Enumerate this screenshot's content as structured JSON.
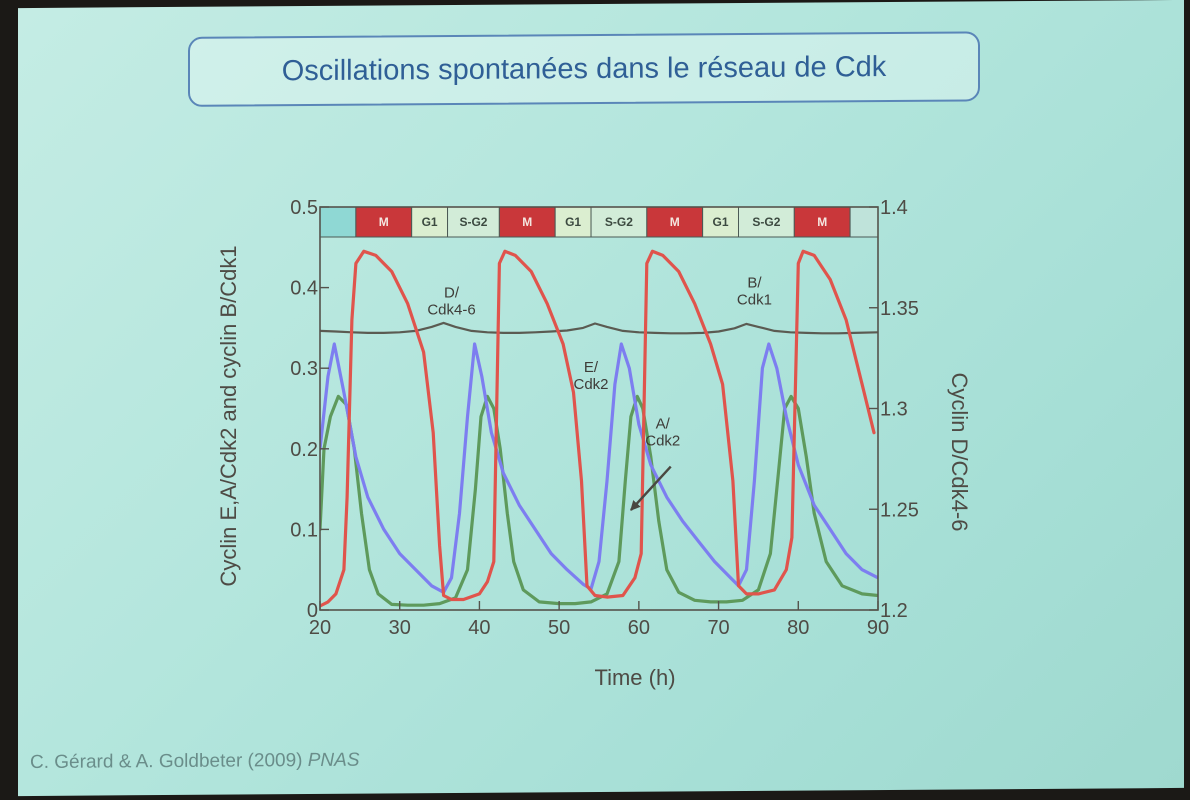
{
  "slide": {
    "title": "Oscillations spontanées dans le réseau de Cdk",
    "citation_authors": "C. Gérard & A. Goldbeter (2009)",
    "citation_journal": "PNAS"
  },
  "colors": {
    "cyclin_B": "#e0544c",
    "cyclin_E": "#7d7ef0",
    "cyclin_A": "#5e9a5c",
    "cyclin_D": "#5b5b52",
    "phase_M": "#c9373a",
    "phase_G1": "#dbeed0",
    "phase_SG2": "#d2ecd8",
    "phase_lead": "#8fd8d4"
  },
  "chart_data": {
    "type": "line",
    "xlabel": "Time (h)",
    "ylabel_left": "Cyclin E,A/Cdk2 and cyclin B/Cdk1",
    "ylabel_right": "Cyclin D/Cdk4-6",
    "xlim": [
      20,
      90
    ],
    "ylim_left": [
      0,
      0.5
    ],
    "ylim_right": [
      1.2,
      1.4
    ],
    "xticks": [
      20,
      30,
      40,
      50,
      60,
      70,
      80,
      90
    ],
    "yticks_left": [
      0,
      0.1,
      0.2,
      0.3,
      0.4,
      0.5
    ],
    "yticks_left_labels": [
      "0",
      "0.1",
      "0.2",
      "0.3",
      "0.4",
      "0.5"
    ],
    "yticks_right": [
      1.2,
      1.25,
      1.3,
      1.35,
      1.4
    ],
    "yticks_right_labels": [
      "1.2",
      "1.25",
      "1.3",
      "1.35",
      "1.4"
    ],
    "phases": [
      {
        "label": "",
        "start": 20,
        "end": 24.5
      },
      {
        "label": "M",
        "start": 24.5,
        "end": 31.5
      },
      {
        "label": "G1",
        "start": 31.5,
        "end": 36
      },
      {
        "label": "S-G2",
        "start": 36,
        "end": 42.5
      },
      {
        "label": "M",
        "start": 42.5,
        "end": 49.5
      },
      {
        "label": "G1",
        "start": 49.5,
        "end": 54
      },
      {
        "label": "S-G2",
        "start": 54,
        "end": 61
      },
      {
        "label": "M",
        "start": 61,
        "end": 68
      },
      {
        "label": "G1",
        "start": 68,
        "end": 72.5
      },
      {
        "label": "S-G2",
        "start": 72.5,
        "end": 79.5
      },
      {
        "label": "M",
        "start": 79.5,
        "end": 86.5
      }
    ],
    "annotations": [
      {
        "lines": [
          "D/",
          "Cdk4-6"
        ],
        "x": 36.5,
        "y": 0.388
      },
      {
        "lines": [
          "E/",
          "Cdk2"
        ],
        "x": 54,
        "y": 0.295
      },
      {
        "lines": [
          "A/",
          "Cdk2"
        ],
        "x": 63,
        "y": 0.225
      },
      {
        "lines": [
          "B/",
          "Cdk1"
        ],
        "x": 74.5,
        "y": 0.4
      }
    ],
    "arrow": {
      "from": [
        64,
        0.178
      ],
      "to": [
        59,
        0.124
      ]
    },
    "series": [
      {
        "name": "B/Cdk1",
        "axis": "left",
        "color_key": "cyclin_B",
        "x": [
          20,
          21,
          22,
          23,
          23.4,
          24,
          24.5,
          25.5,
          27,
          29,
          31,
          33,
          34.2,
          35,
          35.5,
          36.5,
          38,
          40,
          41,
          41.8,
          42.5,
          43.2,
          44.5,
          46.5,
          48.5,
          50.5,
          51.8,
          52.8,
          53.5,
          54.5,
          56,
          58,
          59.5,
          60.3,
          61,
          61.7,
          63,
          65,
          67,
          69,
          70.5,
          71.8,
          72.5,
          73.5,
          75,
          77,
          78.5,
          79.2,
          80,
          80.6,
          82,
          84,
          86,
          88,
          89.5
        ],
        "y": [
          0.005,
          0.01,
          0.02,
          0.05,
          0.14,
          0.36,
          0.43,
          0.445,
          0.44,
          0.42,
          0.38,
          0.32,
          0.22,
          0.08,
          0.018,
          0.013,
          0.013,
          0.02,
          0.035,
          0.06,
          0.43,
          0.445,
          0.44,
          0.42,
          0.38,
          0.33,
          0.27,
          0.16,
          0.03,
          0.018,
          0.016,
          0.018,
          0.04,
          0.07,
          0.43,
          0.445,
          0.44,
          0.42,
          0.38,
          0.33,
          0.28,
          0.16,
          0.03,
          0.02,
          0.02,
          0.025,
          0.05,
          0.09,
          0.43,
          0.445,
          0.44,
          0.41,
          0.36,
          0.28,
          0.22
        ]
      },
      {
        "name": "E/Cdk2",
        "axis": "left",
        "color_key": "cyclin_E",
        "x": [
          20,
          21,
          21.8,
          23,
          24.5,
          26,
          28,
          30,
          32,
          34,
          35.5,
          36.5,
          37.5,
          38.5,
          39.4,
          40.3,
          41.5,
          43,
          45,
          47,
          49,
          51,
          53,
          54,
          55,
          56,
          57,
          57.8,
          58.8,
          60,
          61.5,
          63.5,
          65.5,
          67.5,
          69.5,
          71.5,
          72.5,
          73.5,
          74.5,
          75.5,
          76.3,
          77.3,
          78.5,
          80,
          82,
          84,
          86,
          88,
          90
        ],
        "y": [
          0.2,
          0.29,
          0.33,
          0.27,
          0.19,
          0.14,
          0.1,
          0.07,
          0.05,
          0.03,
          0.022,
          0.04,
          0.12,
          0.24,
          0.33,
          0.29,
          0.22,
          0.17,
          0.13,
          0.1,
          0.07,
          0.05,
          0.032,
          0.026,
          0.06,
          0.16,
          0.28,
          0.33,
          0.3,
          0.23,
          0.18,
          0.14,
          0.11,
          0.085,
          0.06,
          0.04,
          0.03,
          0.05,
          0.16,
          0.3,
          0.33,
          0.3,
          0.24,
          0.18,
          0.13,
          0.1,
          0.07,
          0.05,
          0.04
        ]
      },
      {
        "name": "A/Cdk2",
        "axis": "left",
        "color_key": "cyclin_A",
        "x": [
          20,
          20.5,
          21.3,
          22.3,
          23.3,
          24.3,
          25.2,
          26.2,
          27.3,
          29,
          31,
          33,
          35,
          37,
          38.5,
          39.5,
          40.2,
          41,
          41.8,
          42.6,
          43.5,
          44.3,
          45.5,
          47.5,
          50,
          52,
          54,
          56,
          57.5,
          58.3,
          59,
          59.8,
          60.5,
          61.5,
          62.5,
          63.5,
          65,
          67,
          69,
          71,
          73,
          75,
          76.5,
          77.5,
          78.3,
          79.1,
          80,
          81,
          82,
          83.5,
          85.5,
          88,
          90
        ],
        "y": [
          0.1,
          0.2,
          0.24,
          0.265,
          0.255,
          0.2,
          0.12,
          0.05,
          0.02,
          0.007,
          0.006,
          0.006,
          0.008,
          0.015,
          0.05,
          0.15,
          0.24,
          0.265,
          0.25,
          0.2,
          0.12,
          0.06,
          0.025,
          0.01,
          0.008,
          0.008,
          0.01,
          0.02,
          0.06,
          0.16,
          0.24,
          0.265,
          0.25,
          0.19,
          0.11,
          0.05,
          0.022,
          0.012,
          0.01,
          0.01,
          0.012,
          0.025,
          0.07,
          0.17,
          0.25,
          0.265,
          0.25,
          0.19,
          0.12,
          0.06,
          0.03,
          0.02,
          0.018
        ]
      },
      {
        "name": "D/Cdk4-6",
        "axis": "right",
        "color_key": "cyclin_D",
        "x": [
          20,
          22,
          24,
          26,
          28,
          30,
          32,
          34,
          35.5,
          37,
          39,
          41,
          43,
          45,
          47,
          49,
          51,
          53,
          54.5,
          56,
          58,
          60,
          62,
          64,
          66,
          68,
          70,
          72,
          73.5,
          75,
          77,
          79,
          81,
          83,
          85,
          87,
          90
        ],
        "y": [
          1.3385,
          1.3382,
          1.3378,
          1.3375,
          1.3375,
          1.3378,
          1.3385,
          1.3405,
          1.3425,
          1.3405,
          1.3385,
          1.3378,
          1.3375,
          1.3375,
          1.3378,
          1.3382,
          1.3387,
          1.34,
          1.3422,
          1.3405,
          1.3385,
          1.3378,
          1.3375,
          1.3373,
          1.3373,
          1.3375,
          1.3382,
          1.3398,
          1.342,
          1.3405,
          1.3385,
          1.3378,
          1.3375,
          1.3373,
          1.3373,
          1.3375,
          1.3378
        ]
      }
    ]
  }
}
